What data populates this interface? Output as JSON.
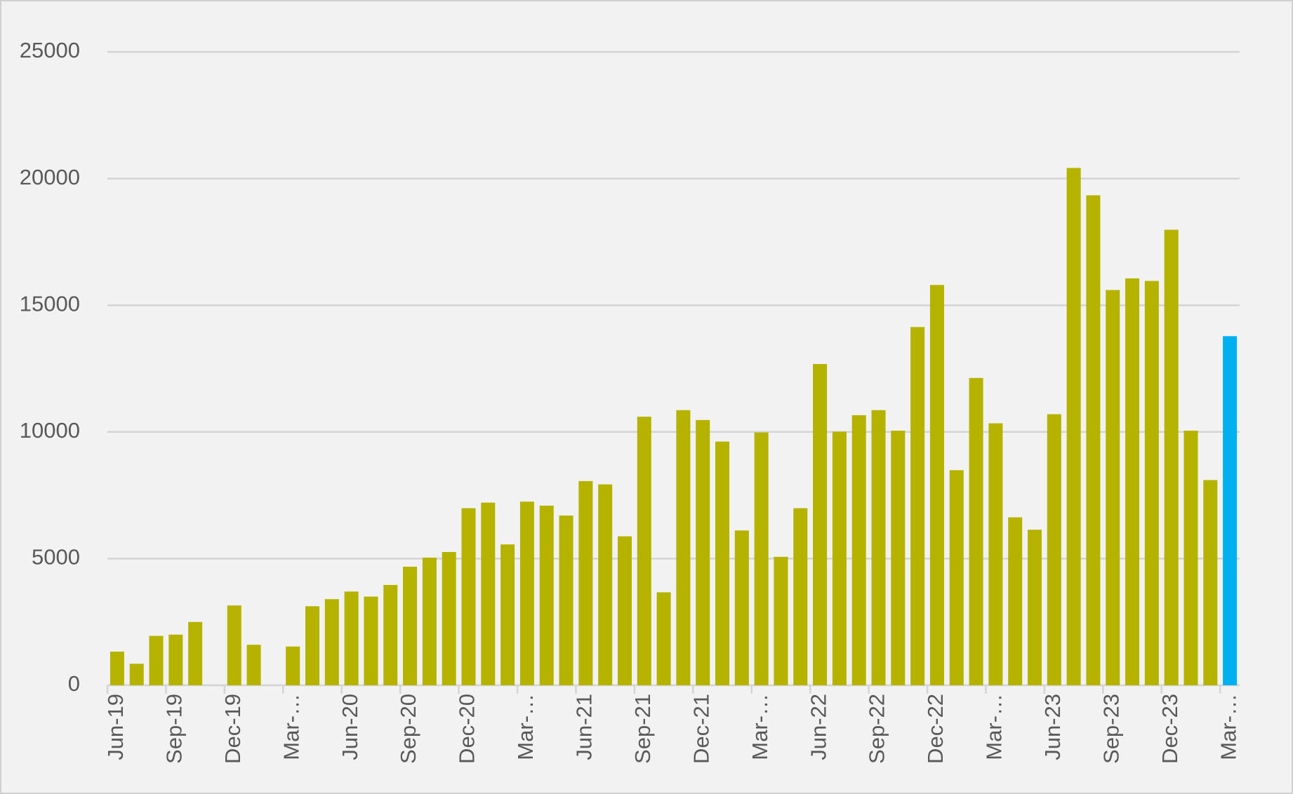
{
  "chart_data": {
    "type": "bar",
    "categories": [
      "Jun-19",
      null,
      null,
      "Sep-19",
      null,
      null,
      "Dec-19",
      null,
      null,
      "Mar-…",
      null,
      null,
      "Jun-20",
      null,
      null,
      "Sep-20",
      null,
      null,
      "Dec-20",
      null,
      null,
      "Mar-…",
      null,
      null,
      "Jun-21",
      null,
      null,
      "Sep-21",
      null,
      null,
      "Dec-21",
      null,
      null,
      "Mar-…",
      null,
      null,
      "Jun-22",
      null,
      null,
      "Sep-22",
      null,
      null,
      "Dec-22",
      null,
      null,
      "Mar-…",
      null,
      null,
      "Jun-23",
      null,
      null,
      "Sep-23",
      null,
      null,
      "Dec-23",
      null,
      null,
      "Mar-…"
    ],
    "values": [
      1330,
      850,
      1950,
      2000,
      2500,
      0,
      3150,
      1600,
      0,
      1530,
      3120,
      3400,
      3700,
      3500,
      3960,
      4680,
      5040,
      5260,
      6990,
      7210,
      5560,
      7250,
      7090,
      6700,
      8060,
      7930,
      5880,
      10600,
      3670,
      10860,
      10470,
      9620,
      6110,
      9980,
      5070,
      6990,
      12680,
      10010,
      10660,
      10860,
      10050,
      14140,
      15800,
      8490,
      12130,
      10340,
      6630,
      6140,
      10700,
      20420,
      19340,
      15600,
      16060,
      15960,
      17980,
      10050,
      8100,
      13780
    ],
    "colors": [
      "#b5b300",
      "#b5b300",
      "#b5b300",
      "#b5b300",
      "#b5b300",
      "#b5b300",
      "#b5b300",
      "#b5b300",
      "#b5b300",
      "#b5b300",
      "#b5b300",
      "#b5b300",
      "#b5b300",
      "#b5b300",
      "#b5b300",
      "#b5b300",
      "#b5b300",
      "#b5b300",
      "#b5b300",
      "#b5b300",
      "#b5b300",
      "#b5b300",
      "#b5b300",
      "#b5b300",
      "#b5b300",
      "#b5b300",
      "#b5b300",
      "#b5b300",
      "#b5b300",
      "#b5b300",
      "#b5b300",
      "#b5b300",
      "#b5b300",
      "#b5b300",
      "#b5b300",
      "#b5b300",
      "#b5b300",
      "#b5b300",
      "#b5b300",
      "#b5b300",
      "#b5b300",
      "#b5b300",
      "#b5b300",
      "#b5b300",
      "#b5b300",
      "#b5b300",
      "#b5b300",
      "#b5b300",
      "#b5b300",
      "#b5b300",
      "#b5b300",
      "#b5b300",
      "#b5b300",
      "#b5b300",
      "#b5b300",
      "#b5b300",
      "#b5b300",
      "#00b0f0"
    ],
    "ylim": [
      0,
      25000
    ],
    "yticks": [
      0,
      5000,
      10000,
      15000,
      20000,
      25000
    ],
    "grid": true
  }
}
